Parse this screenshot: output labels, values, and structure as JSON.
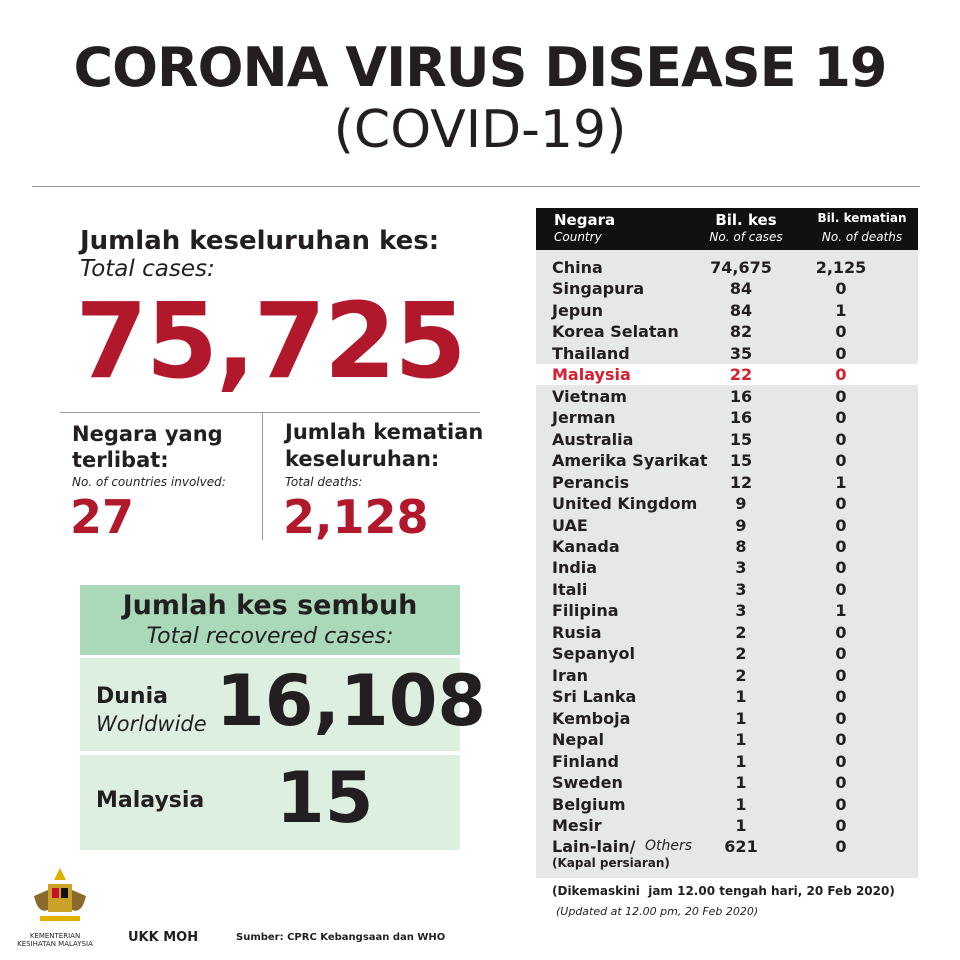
{
  "header": {
    "title": "CORONA VIRUS DISEASE 19",
    "subtitle": "(COVID-19)"
  },
  "total_cases": {
    "label": "Jumlah keseluruhan kes:",
    "sublabel": "Total cases:",
    "value": "75,725"
  },
  "countries": {
    "label_lines": [
      "Negara yang",
      "terlibat:"
    ],
    "sublabel": "No. of countries involved:",
    "value": "27"
  },
  "deaths": {
    "label_lines": [
      "Jumlah kematian",
      "keseluruhan:"
    ],
    "sublabel": "Total deaths:",
    "value": "2,128"
  },
  "recovered": {
    "title": "Jumlah kes sembuh",
    "subtitle": "Total recovered cases:",
    "world": {
      "label": "Dunia",
      "sublabel": "Worldwide",
      "value": "16,108"
    },
    "malaysia": {
      "label": "Malaysia",
      "value": "15"
    }
  },
  "table": {
    "headers": [
      {
        "main": "Negara",
        "sub": "Country"
      },
      {
        "main": "Bil. kes",
        "sub": "No. of cases"
      },
      {
        "main": "Bil. kematian",
        "sub": "No. of deaths"
      }
    ],
    "highlight_row": 5,
    "rows": [
      [
        "China",
        "74,675",
        "2,125"
      ],
      [
        "Singapura",
        "84",
        "0"
      ],
      [
        "Jepun",
        "84",
        "1"
      ],
      [
        "Korea Selatan",
        "82",
        "0"
      ],
      [
        "Thailand",
        "35",
        "0"
      ],
      [
        "Malaysia",
        "22",
        "0"
      ],
      [
        "Vietnam",
        "16",
        "0"
      ],
      [
        "Jerman",
        "16",
        "0"
      ],
      [
        "Australia",
        "15",
        "0"
      ],
      [
        "Amerika Syarikat",
        "15",
        "0"
      ],
      [
        "Perancis",
        "12",
        "1"
      ],
      [
        "United Kingdom",
        "9",
        "0"
      ],
      [
        "UAE",
        "9",
        "0"
      ],
      [
        "Kanada",
        "8",
        "0"
      ],
      [
        "India",
        "3",
        "0"
      ],
      [
        "Itali",
        "3",
        "0"
      ],
      [
        "Filipina",
        "3",
        "1"
      ],
      [
        "Rusia",
        "2",
        "0"
      ],
      [
        "Sepanyol",
        "2",
        "0"
      ],
      [
        "Iran",
        "2",
        "0"
      ],
      [
        "Sri Lanka",
        "1",
        "0"
      ],
      [
        "Kemboja",
        "1",
        "0"
      ],
      [
        "Nepal",
        "1",
        "0"
      ],
      [
        "Finland",
        "1",
        "0"
      ],
      [
        "Sweden",
        "1",
        "0"
      ],
      [
        "Belgium",
        "1",
        "0"
      ],
      [
        "Mesir",
        "1",
        "0"
      ],
      [
        "Lain-lain/",
        "621",
        "0"
      ]
    ],
    "last_row_extra": {
      "sub": "Others",
      "note": "(Kapal persiaran)"
    }
  },
  "footer": {
    "updated": "(Dikemaskini  jam 12.00 tengah hari, 20 Feb 2020)",
    "updated_en": "(Updated at 12.00 pm, 20 Feb 2020)",
    "ministry": "KEMENTERIAN KESIHATAN MALAYSIA",
    "unit": "UKK MOH",
    "source": "Sumber: CPRC Kebangsaan dan WHO"
  }
}
